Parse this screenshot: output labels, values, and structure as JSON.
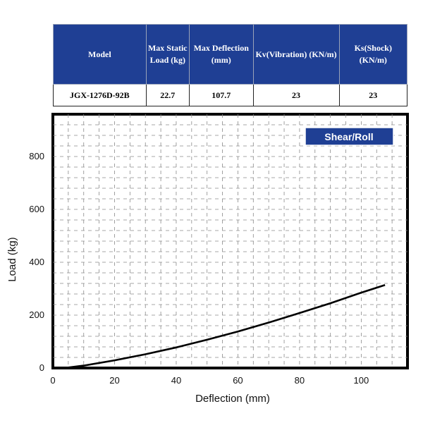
{
  "spec_table": {
    "headers": [
      "Model",
      "Max Static Load (kg)",
      "Max Deflection (mm)",
      "Kv(Vibration) (KN/m)",
      "Ks(Shock) (KN/m)"
    ],
    "row": [
      "JGX-1276D-92B",
      "22.7",
      "107.7",
      "23",
      "23"
    ]
  },
  "chart_data": {
    "type": "line",
    "badge": "Shear/Roll",
    "xlabel": "Deflection (mm)",
    "ylabel": "Load (kg)",
    "xlim": [
      0,
      115
    ],
    "ylim": [
      0,
      960
    ],
    "xticks": [
      0,
      20,
      40,
      60,
      80,
      100
    ],
    "yticks": [
      0,
      200,
      400,
      600,
      800
    ],
    "grid": true,
    "series": [
      {
        "x": [
          0,
          5,
          10,
          20,
          30,
          40,
          50,
          60,
          70,
          80,
          90,
          100,
          107.7
        ],
        "y": [
          0,
          2,
          9,
          29,
          52,
          78,
          107,
          138,
          172,
          208,
          245,
          285,
          314
        ]
      }
    ]
  },
  "colors": {
    "header_bg": "#1f3f94",
    "badge_bg": "#1f3f94",
    "curve": "#000000",
    "grid": "#8a8a8a"
  }
}
